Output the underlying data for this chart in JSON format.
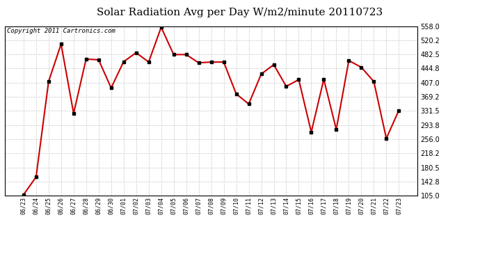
{
  "title": "Solar Radiation Avg per Day W/m2/minute 20110723",
  "copyright": "Copyright 2011 Cartronics.com",
  "dates": [
    "06/23",
    "06/24",
    "06/25",
    "06/26",
    "06/27",
    "06/28",
    "06/29",
    "06/30",
    "07/01",
    "07/02",
    "07/03",
    "07/04",
    "07/05",
    "07/06",
    "07/07",
    "07/08",
    "07/09",
    "07/10",
    "07/11",
    "07/12",
    "07/13",
    "07/14",
    "07/15",
    "07/16",
    "07/17",
    "07/18",
    "07/19",
    "07/20",
    "07/21",
    "07/22",
    "07/23"
  ],
  "values": [
    108,
    155,
    410,
    510,
    325,
    470,
    468,
    393,
    463,
    487,
    462,
    555,
    482,
    482,
    460,
    462,
    462,
    377,
    350,
    430,
    455,
    397,
    415,
    275,
    416,
    282,
    466,
    448,
    410,
    258,
    333
  ],
  "line_color": "#cc0000",
  "marker_color": "#000000",
  "bg_color": "#ffffff",
  "grid_color": "#c8c8c8",
  "ylim_min": 105.0,
  "ylim_max": 558.0,
  "yticks": [
    105.0,
    142.8,
    180.5,
    218.2,
    256.0,
    293.8,
    331.5,
    369.2,
    407.0,
    444.8,
    482.5,
    520.2,
    558.0
  ],
  "title_fontsize": 11,
  "copyright_fontsize": 6.5
}
